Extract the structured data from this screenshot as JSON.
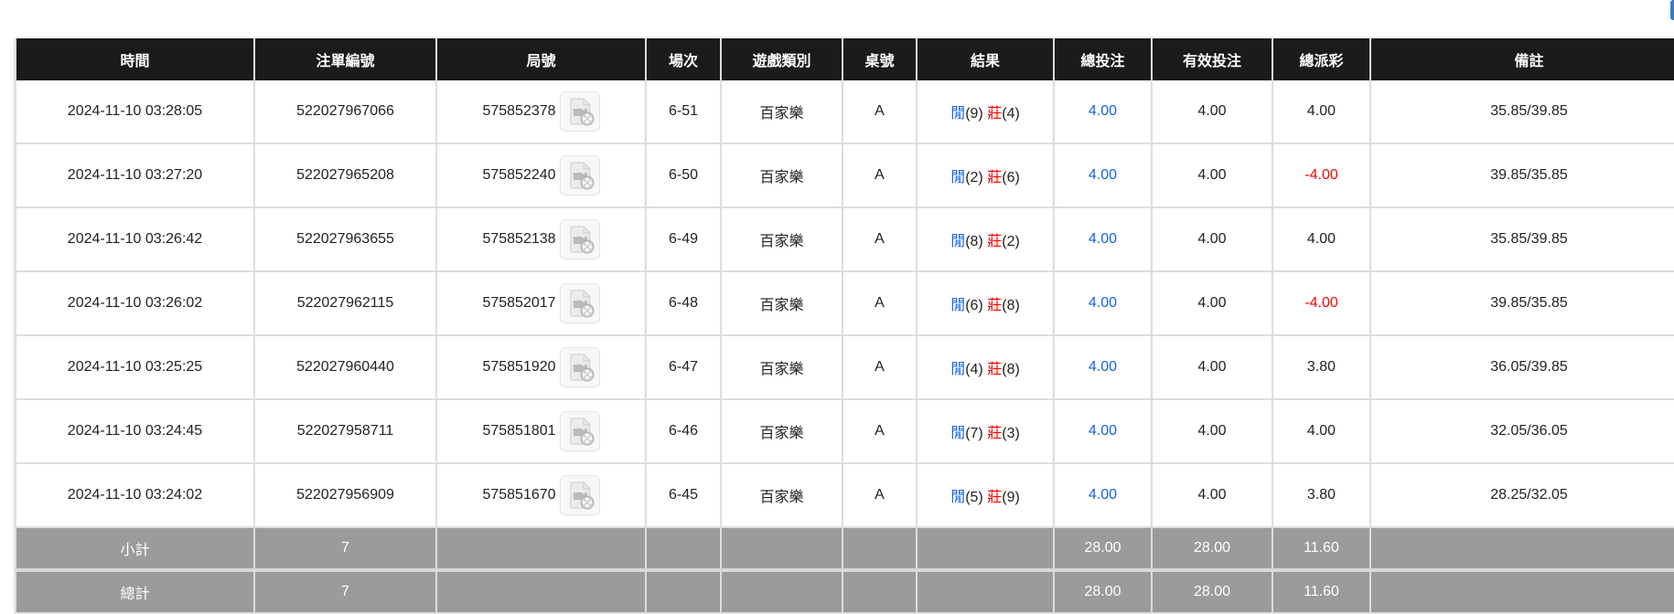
{
  "columns": [
    "時間",
    "注單編號",
    "局號",
    "場次",
    "遊戲類別",
    "桌號",
    "結果",
    "總投注",
    "有效投注",
    "總派彩",
    "備註"
  ],
  "colors": {
    "player": "#1463e6",
    "banker": "#ff0000",
    "negative": "#ff0000",
    "header": "#1b1b1b",
    "summary": "#9b9b9b"
  },
  "rows": [
    {
      "time": "2024-11-10 03:28:05",
      "bet_id": "522027967066",
      "round": "575852378",
      "shoe": "6-51",
      "game": "百家樂",
      "table": "A",
      "p": "閒",
      "pv": "(9)",
      "b": "莊",
      "bv": "(4)",
      "total": "4.00",
      "valid": "4.00",
      "payout": "4.00",
      "neg": false,
      "note": "35.85/39.85"
    },
    {
      "time": "2024-11-10 03:27:20",
      "bet_id": "522027965208",
      "round": "575852240",
      "shoe": "6-50",
      "game": "百家樂",
      "table": "A",
      "p": "閒",
      "pv": "(2)",
      "b": "莊",
      "bv": "(6)",
      "total": "4.00",
      "valid": "4.00",
      "payout": "-4.00",
      "neg": true,
      "note": "39.85/35.85"
    },
    {
      "time": "2024-11-10 03:26:42",
      "bet_id": "522027963655",
      "round": "575852138",
      "shoe": "6-49",
      "game": "百家樂",
      "table": "A",
      "p": "閒",
      "pv": "(8)",
      "b": "莊",
      "bv": "(2)",
      "total": "4.00",
      "valid": "4.00",
      "payout": "4.00",
      "neg": false,
      "note": "35.85/39.85"
    },
    {
      "time": "2024-11-10 03:26:02",
      "bet_id": "522027962115",
      "round": "575852017",
      "shoe": "6-48",
      "game": "百家樂",
      "table": "A",
      "p": "閒",
      "pv": "(6)",
      "b": "莊",
      "bv": "(8)",
      "total": "4.00",
      "valid": "4.00",
      "payout": "-4.00",
      "neg": true,
      "note": "39.85/35.85"
    },
    {
      "time": "2024-11-10 03:25:25",
      "bet_id": "522027960440",
      "round": "575851920",
      "shoe": "6-47",
      "game": "百家樂",
      "table": "A",
      "p": "閒",
      "pv": "(4)",
      "b": "莊",
      "bv": "(8)",
      "total": "4.00",
      "valid": "4.00",
      "payout": "3.80",
      "neg": false,
      "note": "36.05/39.85"
    },
    {
      "time": "2024-11-10 03:24:45",
      "bet_id": "522027958711",
      "round": "575851801",
      "shoe": "6-46",
      "game": "百家樂",
      "table": "A",
      "p": "閒",
      "pv": "(7)",
      "b": "莊",
      "bv": "(3)",
      "total": "4.00",
      "valid": "4.00",
      "payout": "4.00",
      "neg": false,
      "note": "32.05/36.05"
    },
    {
      "time": "2024-11-10 03:24:02",
      "bet_id": "522027956909",
      "round": "575851670",
      "shoe": "6-45",
      "game": "百家樂",
      "table": "A",
      "p": "閒",
      "pv": "(5)",
      "b": "莊",
      "bv": "(9)",
      "total": "4.00",
      "valid": "4.00",
      "payout": "3.80",
      "neg": false,
      "note": "28.25/32.05"
    }
  ],
  "summary": [
    {
      "label": "小計",
      "count": "7",
      "total": "28.00",
      "valid": "28.00",
      "payout": "11.60"
    },
    {
      "label": "總計",
      "count": "7",
      "total": "28.00",
      "valid": "28.00",
      "payout": "11.60"
    }
  ]
}
